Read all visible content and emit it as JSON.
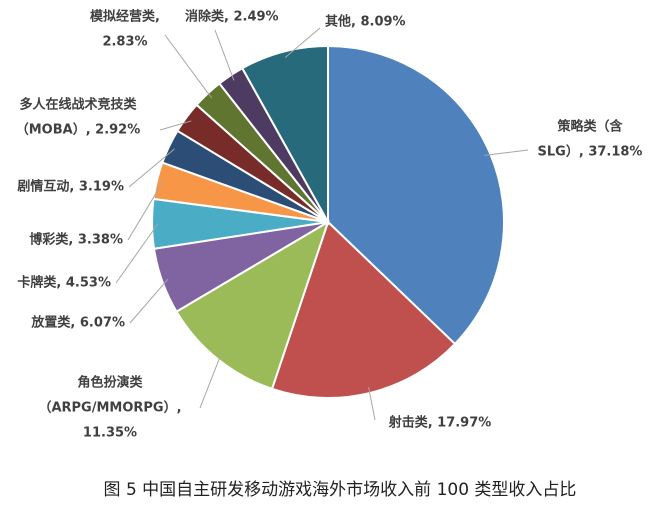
{
  "chart_data": {
    "type": "pie",
    "caption": "图 5 中国自主研发移动游戏海外市场收入前 100 类型收入占比",
    "labels": [
      [
        "策略类（含",
        "SLG）, 37.18%"
      ],
      [
        "射击类, 17.97%"
      ],
      [
        "角色扮演类",
        "（ARPG/MMORPG）,",
        "11.35%"
      ],
      [
        "放置类, 6.07%"
      ],
      [
        "卡牌类, 4.53%"
      ],
      [
        "博彩类, 3.38%"
      ],
      [
        "剧情互动, 3.19%"
      ],
      [
        "多人在线战术竞技类",
        "（MOBA）, 2.92%"
      ],
      [
        "模拟经营类,",
        "2.83%"
      ],
      [
        "消除类, 2.49%"
      ],
      [
        "其他, 8.09%"
      ]
    ],
    "values": [
      37.18,
      17.97,
      11.35,
      6.07,
      4.53,
      3.38,
      3.19,
      2.92,
      2.83,
      2.49,
      8.09
    ],
    "colors": [
      "#4f81bd",
      "#c0504d",
      "#9bbb59",
      "#8064a2",
      "#4bacc6",
      "#f79646",
      "#2c4d75",
      "#772c2a",
      "#5f7530",
      "#4d3b62",
      "#276a7c"
    ]
  }
}
